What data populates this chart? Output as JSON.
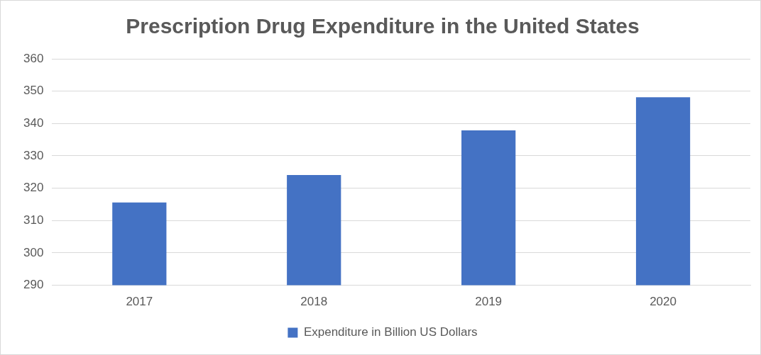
{
  "chart_data": {
    "type": "bar",
    "title": "Prescription Drug Expenditure in the United States",
    "categories": [
      "2017",
      "2018",
      "2019",
      "2020"
    ],
    "series": [
      {
        "name": "Expenditure in Billion US Dollars",
        "color": "#4472c4",
        "values": [
          315.6,
          324.1,
          337.9,
          348.1
        ]
      }
    ],
    "ylim": [
      290,
      360
    ],
    "yticks": [
      290,
      300,
      310,
      320,
      330,
      340,
      350,
      360
    ],
    "grid": "y",
    "legend": "bottom"
  }
}
